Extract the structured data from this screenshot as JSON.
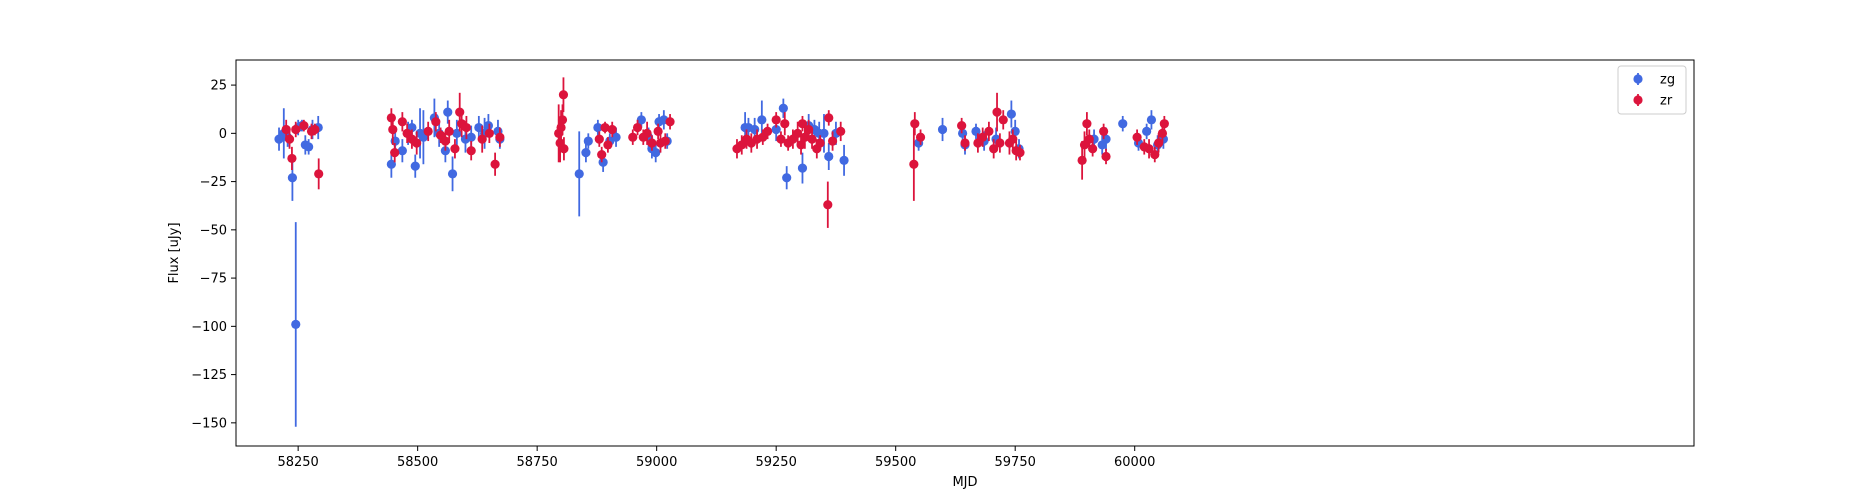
{
  "chart_data": {
    "type": "scatter",
    "xlabel": "MJD",
    "ylabel": "Flux [uJy]",
    "xlim": [
      58120,
      61170
    ],
    "ylim": [
      -162,
      38
    ],
    "x_ticks": [
      58250,
      58500,
      58750,
      59000,
      59250,
      59500,
      59750,
      60000
    ],
    "x_tick_labels": [
      "58250",
      "58500",
      "58750",
      "59000",
      "59250",
      "59500",
      "59750",
      "60000"
    ],
    "y_ticks": [
      25,
      0,
      -25,
      -50,
      -75,
      -100,
      -125,
      -150
    ],
    "y_tick_labels": [
      "25",
      "0",
      "−25",
      "−50",
      "−75",
      "−100",
      "−125",
      "−150"
    ],
    "grid": false,
    "legend_position": "top-right",
    "series": [
      {
        "name": "zg",
        "color": "#4169e1",
        "points": [
          [
            58210,
            -3,
            6
          ],
          [
            58220,
            0,
            13
          ],
          [
            58228,
            -2,
            5
          ],
          [
            58238,
            -23,
            12
          ],
          [
            58245,
            -99,
            53
          ],
          [
            58250,
            3,
            4
          ],
          [
            58258,
            4,
            3
          ],
          [
            58265,
            -6,
            5
          ],
          [
            58272,
            -7,
            4
          ],
          [
            58280,
            2,
            5
          ],
          [
            58292,
            3,
            6
          ],
          [
            58445,
            -16,
            7
          ],
          [
            58453,
            -4,
            6
          ],
          [
            58468,
            -9,
            6
          ],
          [
            58480,
            0,
            6
          ],
          [
            58488,
            3,
            4
          ],
          [
            58495,
            -17,
            6
          ],
          [
            58505,
            0,
            13
          ],
          [
            58512,
            -2,
            14
          ],
          [
            58535,
            8,
            10
          ],
          [
            58545,
            0,
            7
          ],
          [
            58558,
            -9,
            6
          ],
          [
            58563,
            11,
            6
          ],
          [
            58573,
            -21,
            9
          ],
          [
            58582,
            0,
            7
          ],
          [
            58600,
            -3,
            7
          ],
          [
            58612,
            -2,
            6
          ],
          [
            58628,
            3,
            6
          ],
          [
            58640,
            0,
            8
          ],
          [
            58648,
            4,
            6
          ],
          [
            58668,
            1,
            6
          ],
          [
            58672,
            -3,
            5
          ],
          [
            58838,
            -21,
            22
          ],
          [
            58852,
            -10,
            5
          ],
          [
            58857,
            -4,
            4
          ],
          [
            58877,
            3,
            4
          ],
          [
            58888,
            -15,
            5
          ],
          [
            58902,
            -4,
            4
          ],
          [
            58915,
            -2,
            5
          ],
          [
            58968,
            7,
            4
          ],
          [
            58983,
            -2,
            5
          ],
          [
            58990,
            -8,
            5
          ],
          [
            58998,
            -10,
            5
          ],
          [
            59005,
            6,
            4
          ],
          [
            59015,
            7,
            5
          ],
          [
            59022,
            -4,
            4
          ],
          [
            59185,
            3,
            8
          ],
          [
            59192,
            3,
            5
          ],
          [
            59205,
            2,
            6
          ],
          [
            59220,
            7,
            10
          ],
          [
            59250,
            2,
            6
          ],
          [
            59265,
            13,
            5
          ],
          [
            59272,
            -23,
            6
          ],
          [
            59305,
            -18,
            8
          ],
          [
            59318,
            4,
            6
          ],
          [
            59330,
            2,
            5
          ],
          [
            59340,
            0,
            6
          ],
          [
            59350,
            0,
            10
          ],
          [
            59360,
            -12,
            7
          ],
          [
            59375,
            0,
            6
          ],
          [
            59392,
            -14,
            8
          ],
          [
            59548,
            -5,
            4
          ],
          [
            59598,
            2,
            6
          ],
          [
            59640,
            0,
            5
          ],
          [
            59645,
            -6,
            5
          ],
          [
            59668,
            1,
            4
          ],
          [
            59685,
            -4,
            5
          ],
          [
            59710,
            -3,
            6
          ],
          [
            59742,
            10,
            7
          ],
          [
            59750,
            1,
            6
          ],
          [
            59758,
            -8,
            5
          ],
          [
            59915,
            -3,
            5
          ],
          [
            59932,
            -6,
            5
          ],
          [
            59940,
            -3,
            6
          ],
          [
            59975,
            5,
            4
          ],
          [
            60008,
            -5,
            4
          ],
          [
            60025,
            1,
            4
          ],
          [
            60035,
            7,
            5
          ],
          [
            60048,
            -6,
            5
          ],
          [
            60060,
            -3,
            5
          ]
        ]
      },
      {
        "name": "zr",
        "color": "#dc143c",
        "points": [
          [
            58225,
            2,
            5
          ],
          [
            58232,
            -3,
            5
          ],
          [
            58237,
            -13,
            6
          ],
          [
            58245,
            2,
            4
          ],
          [
            58262,
            4,
            3
          ],
          [
            58278,
            1,
            4
          ],
          [
            58285,
            2,
            3
          ],
          [
            58293,
            -21,
            8
          ],
          [
            58445,
            8,
            5
          ],
          [
            58448,
            2,
            8
          ],
          [
            58452,
            -10,
            5
          ],
          [
            58468,
            6,
            5
          ],
          [
            58478,
            0,
            5
          ],
          [
            58488,
            -3,
            5
          ],
          [
            58498,
            -5,
            6
          ],
          [
            58522,
            1,
            5
          ],
          [
            58538,
            6,
            5
          ],
          [
            58548,
            -1,
            4
          ],
          [
            58558,
            -4,
            5
          ],
          [
            58566,
            1,
            6
          ],
          [
            58578,
            -8,
            5
          ],
          [
            58588,
            11,
            10
          ],
          [
            58592,
            5,
            7
          ],
          [
            58602,
            3,
            6
          ],
          [
            58612,
            -9,
            5
          ],
          [
            58635,
            -3,
            7
          ],
          [
            58650,
            0,
            5
          ],
          [
            58662,
            -16,
            6
          ],
          [
            58672,
            -2,
            5
          ],
          [
            58795,
            0,
            15
          ],
          [
            58798,
            -5,
            10
          ],
          [
            58800,
            3,
            9
          ],
          [
            58803,
            7,
            8
          ],
          [
            58805,
            20,
            9
          ],
          [
            58806,
            -8,
            6
          ],
          [
            58880,
            -3,
            4
          ],
          [
            58885,
            -11,
            4
          ],
          [
            58892,
            3,
            3
          ],
          [
            58898,
            -6,
            4
          ],
          [
            58907,
            2,
            4
          ],
          [
            58950,
            -2,
            4
          ],
          [
            58960,
            3,
            4
          ],
          [
            58972,
            -2,
            4
          ],
          [
            58980,
            0,
            6
          ],
          [
            58990,
            -5,
            4
          ],
          [
            59003,
            1,
            4
          ],
          [
            59008,
            -5,
            5
          ],
          [
            59018,
            -4,
            4
          ],
          [
            59028,
            6,
            4
          ],
          [
            59168,
            -8,
            5
          ],
          [
            59178,
            -6,
            5
          ],
          [
            59188,
            -3,
            5
          ],
          [
            59198,
            -5,
            5
          ],
          [
            59210,
            -3,
            5
          ],
          [
            59222,
            -2,
            4
          ],
          [
            59232,
            1,
            4
          ],
          [
            59250,
            7,
            4
          ],
          [
            59260,
            -3,
            4
          ],
          [
            59268,
            5,
            6
          ],
          [
            59275,
            -5,
            4
          ],
          [
            59285,
            -3,
            5
          ],
          [
            59295,
            0,
            6
          ],
          [
            59302,
            -6,
            5
          ],
          [
            59305,
            5,
            4
          ],
          [
            59310,
            -2,
            6
          ],
          [
            59318,
            2,
            5
          ],
          [
            59325,
            -3,
            5
          ],
          [
            59335,
            -8,
            5
          ],
          [
            59342,
            -5,
            4
          ],
          [
            59358,
            -37,
            12
          ],
          [
            59360,
            8,
            4
          ],
          [
            59368,
            -4,
            5
          ],
          [
            59385,
            1,
            5
          ],
          [
            59538,
            -16,
            19
          ],
          [
            59540,
            5,
            6
          ],
          [
            59552,
            -2,
            4
          ],
          [
            59638,
            4,
            4
          ],
          [
            59645,
            -5,
            4
          ],
          [
            59672,
            -5,
            5
          ],
          [
            59682,
            -2,
            5
          ],
          [
            59695,
            1,
            5
          ],
          [
            59705,
            -8,
            5
          ],
          [
            59712,
            11,
            10
          ],
          [
            59718,
            -5,
            5
          ],
          [
            59725,
            7,
            5
          ],
          [
            59738,
            -5,
            6
          ],
          [
            59745,
            -3,
            5
          ],
          [
            59752,
            -9,
            5
          ],
          [
            59760,
            -10,
            4
          ],
          [
            59890,
            -14,
            10
          ],
          [
            59895,
            -6,
            7
          ],
          [
            59900,
            5,
            6
          ],
          [
            59905,
            -3,
            5
          ],
          [
            59912,
            -8,
            4
          ],
          [
            59935,
            1,
            4
          ],
          [
            59940,
            -12,
            4
          ],
          [
            60005,
            -2,
            4
          ],
          [
            60020,
            -7,
            4
          ],
          [
            60030,
            -8,
            5
          ],
          [
            60042,
            -11,
            4
          ],
          [
            60050,
            -5,
            5
          ],
          [
            60058,
            0,
            5
          ],
          [
            60062,
            5,
            4
          ]
        ]
      }
    ]
  }
}
